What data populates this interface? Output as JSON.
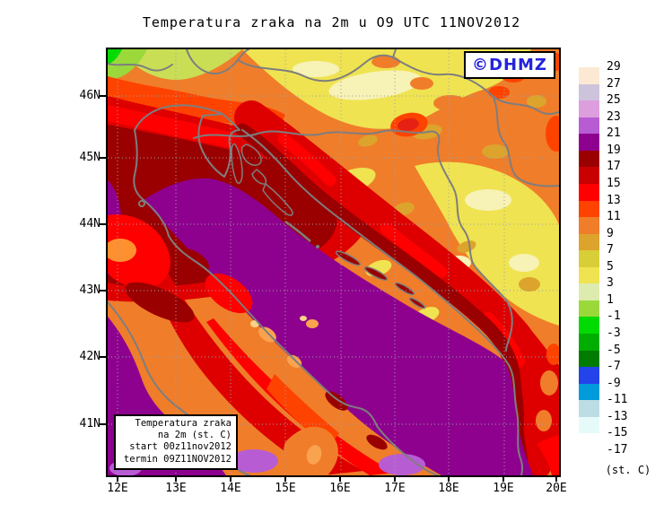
{
  "title": "Temperatura zraka na 2m u O9 UTC 11NOV2012",
  "watermark": {
    "text": "©DHMZ"
  },
  "info_box": {
    "lines": [
      "Temperatura zraka",
      "na 2m (st. C)",
      "start 00z11nov2012",
      "termin 09Z11NOV2012"
    ]
  },
  "map": {
    "y_axis": {
      "labels": [
        "46N",
        "45N",
        "44N",
        "43N",
        "42N",
        "41N"
      ]
    },
    "x_axis": {
      "labels": [
        "12E",
        "13E",
        "14E",
        "15E",
        "16E",
        "17E",
        "18E",
        "19E",
        "20E"
      ]
    }
  },
  "legend": {
    "unit_label": "(st. C)",
    "entries": [
      {
        "label": "29",
        "color": "#fce9d3"
      },
      {
        "label": "27",
        "color": "#cdc3db"
      },
      {
        "label": "25",
        "color": "#dc9edc"
      },
      {
        "label": "23",
        "color": "#b85cd3"
      },
      {
        "label": "21",
        "color": "#8e008e"
      },
      {
        "label": "19",
        "color": "#9b0000"
      },
      {
        "label": "17",
        "color": "#c90000"
      },
      {
        "label": "15",
        "color": "#fe0000"
      },
      {
        "label": "13",
        "color": "#fe4300"
      },
      {
        "label": "11",
        "color": "#f07d2a"
      },
      {
        "label": "9",
        "color": "#dca42c"
      },
      {
        "label": "7",
        "color": "#d8ce38"
      },
      {
        "label": "5",
        "color": "#efe351"
      },
      {
        "label": "3",
        "color": "#ddecae"
      },
      {
        "label": "1",
        "color": "#9bd93b"
      },
      {
        "label": "-1",
        "color": "#01db01"
      },
      {
        "label": "-3",
        "color": "#01ad01"
      },
      {
        "label": "-5",
        "color": "#017c01"
      },
      {
        "label": "-7",
        "color": "#2543ea"
      },
      {
        "label": "-9",
        "color": "#019bdc"
      },
      {
        "label": "-11",
        "color": "#bcdde4"
      },
      {
        "label": "-13",
        "color": "#e7fafa"
      },
      {
        "label": "-15",
        "color": "#ffffff"
      },
      {
        "label": "-17",
        "color": null
      }
    ]
  },
  "colors": {
    "watermark_blue": "#2323dd",
    "geography_gray": "#7e7e7e",
    "grid_gray": "#99a3ad",
    "frame_black": "#000000"
  }
}
